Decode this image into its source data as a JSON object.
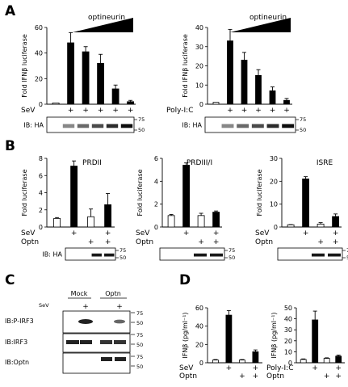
{
  "panels": {
    "A": "A",
    "B": "B",
    "C": "C",
    "D": "D"
  },
  "chart_data": [
    {
      "id": "A1",
      "type": "bar",
      "ylabel": "Fold IFNβ luciferase",
      "ylim": [
        0,
        60
      ],
      "yticks": [
        0,
        20,
        40,
        60
      ],
      "triangle_label": "optineurin",
      "values": [
        1,
        48,
        41,
        32,
        12,
        2
      ],
      "errors": [
        0,
        8,
        4,
        7,
        3,
        1
      ],
      "fills": [
        "white",
        "black",
        "black",
        "black",
        "black",
        "black"
      ],
      "rows": [
        {
          "label": "SeV",
          "signs": [
            "",
            "+",
            "+",
            "+",
            "+",
            "+"
          ]
        }
      ],
      "blot": {
        "label": "IB: HA",
        "markers": [
          "75",
          "50"
        ]
      }
    },
    {
      "id": "A2",
      "type": "bar",
      "ylabel": "Fold IFNβ luciferase",
      "ylim": [
        0,
        40
      ],
      "yticks": [
        0,
        10,
        20,
        30,
        40
      ],
      "triangle_label": "optineurin",
      "values": [
        1,
        33,
        23,
        15,
        7,
        2
      ],
      "errors": [
        0,
        6,
        4,
        3,
        2,
        1
      ],
      "fills": [
        "white",
        "black",
        "black",
        "black",
        "black",
        "black"
      ],
      "rows": [
        {
          "label": "Poly-I:C",
          "signs": [
            "",
            "+",
            "+",
            "+",
            "+",
            "+"
          ]
        }
      ],
      "blot": {
        "label": "IB: HA",
        "markers": [
          "75",
          "50"
        ]
      }
    },
    {
      "id": "B1",
      "type": "bar",
      "title": "PRDII",
      "ylabel": "Fold luciferase",
      "ylim": [
        0,
        8
      ],
      "yticks": [
        0,
        2,
        4,
        6,
        8
      ],
      "values": [
        1,
        7.1,
        1.2,
        2.6
      ],
      "errors": [
        0.1,
        0.6,
        0.9,
        1.3
      ],
      "fills": [
        "white",
        "black",
        "white",
        "black"
      ],
      "rows": [
        {
          "label": "SeV",
          "signs": [
            "",
            "+",
            "",
            "+"
          ]
        },
        {
          "label": "Optn",
          "signs": [
            "",
            "",
            "+",
            "+"
          ]
        }
      ],
      "blot": {
        "label": "IB: HA",
        "markers": [
          "75",
          "50"
        ]
      }
    },
    {
      "id": "B2",
      "type": "bar",
      "title": "PRDIII/I",
      "ylabel": "Fold luciferase",
      "ylim": [
        0,
        6
      ],
      "yticks": [
        0,
        2,
        4,
        6
      ],
      "values": [
        1,
        5.4,
        1,
        1.3
      ],
      "errors": [
        0.1,
        0.2,
        0.2,
        0.1
      ],
      "fills": [
        "white",
        "black",
        "white",
        "black"
      ],
      "rows": [
        {
          "label": "SeV",
          "signs": [
            "",
            "+",
            "",
            "+"
          ]
        },
        {
          "label": "Optn",
          "signs": [
            "",
            "",
            "+",
            "+"
          ]
        }
      ],
      "blot": {
        "label": "",
        "markers": [
          "75",
          "50"
        ]
      }
    },
    {
      "id": "B3",
      "type": "bar",
      "title": "ISRE",
      "ylabel": "Fold luciferase",
      "ylim": [
        0,
        30
      ],
      "yticks": [
        0,
        10,
        20,
        30
      ],
      "values": [
        1,
        21,
        1.3,
        4.6
      ],
      "errors": [
        0.1,
        1,
        0.6,
        1.1
      ],
      "fills": [
        "white",
        "black",
        "white",
        "black"
      ],
      "rows": [
        {
          "label": "SeV",
          "signs": [
            "",
            "+",
            "",
            "+"
          ]
        },
        {
          "label": "Optn",
          "signs": [
            "",
            "",
            "+",
            "+"
          ]
        }
      ],
      "blot": {
        "label": "",
        "markers": [
          "75",
          "50"
        ]
      }
    },
    {
      "id": "D1",
      "type": "bar",
      "ylabel": "IFNβ (pg/ml⁻¹)",
      "ylim": [
        0,
        60
      ],
      "yticks": [
        0,
        20,
        40,
        60
      ],
      "values": [
        3,
        52,
        3,
        12
      ],
      "errors": [
        0.5,
        5,
        0.5,
        2
      ],
      "fills": [
        "white",
        "black",
        "white",
        "black"
      ],
      "rows": [
        {
          "label": "SeV",
          "signs": [
            "",
            "+",
            "",
            "+"
          ]
        },
        {
          "label": "Optn",
          "signs": [
            "",
            "",
            "+",
            "+"
          ]
        }
      ]
    },
    {
      "id": "D2",
      "type": "bar",
      "ylabel": "IFNβ (pg/ml⁻¹)",
      "ylim": [
        0,
        50
      ],
      "yticks": [
        0,
        10,
        20,
        30,
        40,
        50
      ],
      "values": [
        3,
        39,
        4,
        6
      ],
      "errors": [
        0.5,
        8,
        0.5,
        1
      ],
      "fills": [
        "white",
        "black",
        "white",
        "black"
      ],
      "rows": [
        {
          "label": "Poly-I:C",
          "signs": [
            "",
            "+",
            "",
            "+"
          ]
        },
        {
          "label": "Optn",
          "signs": [
            "",
            "",
            "+",
            "+"
          ]
        }
      ]
    }
  ],
  "blotC": {
    "columns": [
      "Mock",
      "Optn"
    ],
    "sev_label": "SeV",
    "sev_signs": [
      "",
      "+",
      "",
      "+"
    ],
    "rows": [
      {
        "label": "IB:P-IRF3",
        "markers": [
          "75",
          "50"
        ]
      },
      {
        "label": "IB:IRF3",
        "markers": [
          "75",
          "50"
        ]
      },
      {
        "label": "IB:Optn",
        "markers": [
          "75",
          "50"
        ]
      }
    ]
  }
}
